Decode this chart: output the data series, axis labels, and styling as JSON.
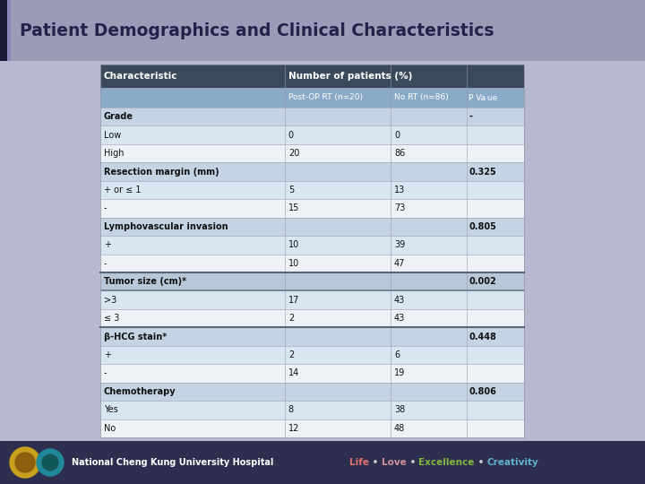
{
  "title": "Patient Demographics and Clinical Characteristics",
  "title_bg": "#9b9bb8",
  "title_color": "#22224a",
  "slide_bg": "#b8b8d0",
  "footer_bg": "#2e2e4e",
  "footer_text": "National Cheng Kung University Hospital",
  "footer_tagline_parts": [
    {
      "text": "Life",
      "color": "#e07070"
    },
    {
      "text": " • ",
      "color": "#cccccc"
    },
    {
      "text": "Love",
      "color": "#d090a0"
    },
    {
      "text": " • ",
      "color": "#cccccc"
    },
    {
      "text": "Excellence",
      "color": "#80b840"
    },
    {
      "text": " • ",
      "color": "#cccccc"
    },
    {
      "text": "Creativity",
      "color": "#60b0d0"
    }
  ],
  "header1_bg": "#3a4a5a",
  "header2_bg": "#8aaac8",
  "section_bg": "#c4d4e4",
  "section_dark_bg": "#b8c8d8",
  "data_alt_bg": "#d8e6f2",
  "data_bg": "#eef2f6",
  "rows": [
    {
      "char": "Characteristic",
      "col2": "Number of patients (%)",
      "col3": "",
      "col4": "",
      "type": "header1"
    },
    {
      "char": "",
      "col2": "Post-OP RT (n=20)",
      "col3": "No RT (n=86)",
      "col4": "P Va ue",
      "type": "header2"
    },
    {
      "char": "Grade",
      "col2": "",
      "col3": "",
      "col4": "-",
      "type": "section"
    },
    {
      "char": "Low",
      "col2": "0",
      "col3": "0",
      "col4": "",
      "type": "data_alt"
    },
    {
      "char": "High",
      "col2": "20",
      "col3": "86",
      "col4": "",
      "type": "data"
    },
    {
      "char": "Resection margin (mm)",
      "col2": "",
      "col3": "",
      "col4": "0.325",
      "type": "section"
    },
    {
      "char": "+ or ≤ 1",
      "col2": "5",
      "col3": "13",
      "col4": "",
      "type": "data_alt"
    },
    {
      "char": "-",
      "col2": "15",
      "col3": "73",
      "col4": "",
      "type": "data"
    },
    {
      "char": "Lymphovascular invasion",
      "col2": "",
      "col3": "",
      "col4": "0.805",
      "type": "section"
    },
    {
      "char": "+",
      "col2": "10",
      "col3": "39",
      "col4": "",
      "type": "data_alt"
    },
    {
      "char": "-",
      "col2": "10",
      "col3": "47",
      "col4": "",
      "type": "data"
    },
    {
      "char": "Tumor size (cm)*",
      "col2": "",
      "col3": "",
      "col4": "0.002",
      "type": "section_dark"
    },
    {
      "char": ">3",
      "col2": "17",
      "col3": "43",
      "col4": "",
      "type": "data_alt"
    },
    {
      "≤ 3": "≤ 3",
      "char": "≤ 3",
      "col2": "2",
      "col3": "43",
      "col4": "",
      "type": "data"
    },
    {
      "β-HCG stain*": "β-HCG stain*",
      "char": "β-HCG stain*",
      "col2": "",
      "col3": "",
      "col4": "0.448",
      "type": "section"
    },
    {
      "char": "+",
      "col2": "2",
      "col3": "6",
      "col4": "",
      "type": "data_alt"
    },
    {
      "char": "-",
      "col2": "14",
      "col3": "19",
      "col4": "",
      "type": "data"
    },
    {
      "char": "Chemotherapy",
      "col2": "",
      "col3": "",
      "col4": "0.806",
      "type": "section"
    },
    {
      "char": "Yes",
      "col2": "8",
      "col3": "38",
      "col4": "",
      "type": "data_alt"
    },
    {
      "char": "No",
      "col2": "12",
      "col3": "48",
      "col4": "",
      "type": "data"
    }
  ]
}
